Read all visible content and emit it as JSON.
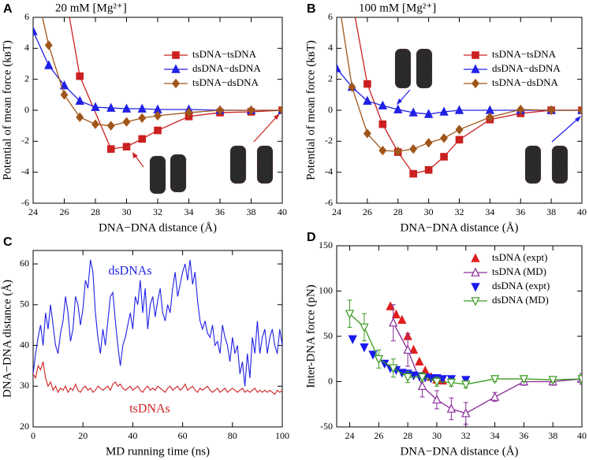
{
  "chart_data": [
    {
      "panel": "A",
      "type": "line",
      "annotation": "20 mM [Mg²⁺]",
      "xlabel": "DNA−DNA distance (Å)",
      "ylabel": "Potential of mean force (kʙT)",
      "xlim": [
        24,
        40
      ],
      "ylim": [
        -6,
        6
      ],
      "xticks": [
        24,
        26,
        28,
        30,
        32,
        34,
        36,
        38,
        40
      ],
      "yticks": [
        -6,
        -4,
        -2,
        0,
        2,
        4,
        6
      ],
      "legend": "upper right",
      "series": [
        {
          "name": "tsDNA−tsDNA",
          "color": "#cc2020",
          "marker": "square",
          "filled": true,
          "line": true,
          "x": [
            26,
            27,
            29,
            30,
            31,
            32,
            34,
            36,
            38,
            40
          ],
          "values": [
            7.9,
            2.2,
            -2.5,
            -2.35,
            -1.85,
            -1.3,
            -0.4,
            -0.15,
            -0.1,
            0
          ]
        },
        {
          "name": "dsDNA−dsDNA",
          "color": "#2020e6",
          "marker": "triangle-up",
          "filled": true,
          "line": true,
          "x": [
            24,
            25,
            26,
            27,
            28,
            29,
            30,
            31,
            32,
            34,
            36,
            38,
            40
          ],
          "values": [
            5.1,
            2.9,
            1.6,
            0.6,
            0.2,
            0.15,
            0.1,
            0.1,
            0.05,
            0.05,
            0,
            0,
            0
          ]
        },
        {
          "name": "tsDNA−dsDNA",
          "color": "#a0561a",
          "marker": "diamond",
          "filled": true,
          "line": true,
          "x": [
            24,
            25,
            26,
            27,
            28,
            29,
            30,
            31,
            32,
            34,
            36,
            38,
            40
          ],
          "values": [
            8.7,
            4.2,
            1.0,
            -0.45,
            -0.9,
            -1.0,
            -0.75,
            -0.5,
            -0.35,
            -0.15,
            0,
            0,
            0
          ]
        }
      ]
    },
    {
      "panel": "B",
      "type": "line",
      "annotation": "100 mM [Mg²⁺]",
      "xlabel": "DNA−DNA distance (Å)",
      "ylabel": "Potential of mean force (kʙT)",
      "xlim": [
        24,
        40
      ],
      "ylim": [
        -6,
        6
      ],
      "xticks": [
        24,
        26,
        28,
        30,
        32,
        34,
        36,
        38,
        40
      ],
      "yticks": [
        -6,
        -4,
        -2,
        0,
        2,
        4,
        6
      ],
      "legend": "upper right",
      "series": [
        {
          "name": "tsDNA−tsDNA",
          "color": "#cc2020",
          "marker": "square",
          "filled": true,
          "line": true,
          "x": [
            25,
            26,
            27,
            28,
            29,
            30,
            31,
            32,
            34,
            36,
            38,
            40
          ],
          "values": [
            7.1,
            1.7,
            -0.9,
            -2.7,
            -4.1,
            -3.85,
            -3.0,
            -1.9,
            -0.6,
            -0.2,
            0,
            0
          ]
        },
        {
          "name": "dsDNA−dsDNA",
          "color": "#2020e6",
          "marker": "triangle-up",
          "filled": true,
          "line": true,
          "x": [
            24,
            25,
            26,
            27,
            28,
            29,
            30,
            31,
            32,
            34,
            36,
            38,
            40
          ],
          "values": [
            2.7,
            1.5,
            0.6,
            0.3,
            0.05,
            -0.15,
            -0.25,
            -0.1,
            0,
            0,
            0,
            0,
            0
          ]
        },
        {
          "name": "tsDNA−dsDNA",
          "color": "#a0561a",
          "marker": "diamond",
          "filled": true,
          "line": true,
          "x": [
            24,
            25,
            26,
            27,
            28,
            29,
            30,
            31,
            32,
            34,
            36,
            38,
            40
          ],
          "values": [
            7.9,
            1.5,
            -1.5,
            -2.6,
            -2.65,
            -2.5,
            -2.1,
            -1.8,
            -1.25,
            -0.45,
            0.05,
            0,
            0
          ]
        }
      ]
    },
    {
      "panel": "C",
      "type": "line",
      "xlabel": "MD running time (ns)",
      "ylabel": "DNA−DNA distance (Å)",
      "xlim": [
        0,
        100
      ],
      "ylim": [
        20,
        63.3
      ],
      "xticks": [
        0,
        20,
        40,
        60,
        80,
        100
      ],
      "yticks": [
        20,
        30,
        40,
        50,
        60
      ],
      "x": [
        0,
        1,
        2,
        3,
        4,
        5,
        6,
        7,
        8,
        9,
        10,
        11,
        12,
        13,
        14,
        15,
        16,
        17,
        18,
        19,
        20,
        21,
        22,
        23,
        24,
        25,
        26,
        27,
        28,
        29,
        30,
        31,
        32,
        33,
        34,
        35,
        36,
        37,
        38,
        39,
        40,
        41,
        42,
        43,
        44,
        45,
        46,
        47,
        48,
        49,
        50,
        51,
        52,
        53,
        54,
        55,
        56,
        57,
        58,
        59,
        60,
        61,
        62,
        63,
        64,
        65,
        66,
        67,
        68,
        69,
        70,
        71,
        72,
        73,
        74,
        75,
        76,
        77,
        78,
        79,
        80,
        81,
        82,
        83,
        84,
        85,
        86,
        87,
        88,
        89,
        90,
        91,
        92,
        93,
        94,
        95,
        96,
        97,
        98,
        99,
        100
      ],
      "series": [
        {
          "name": "dsDNAs",
          "color": "#2020e6",
          "line": true,
          "values": [
            33,
            38,
            42,
            45,
            40,
            48,
            44,
            50,
            45,
            40,
            38,
            43,
            46,
            52,
            48,
            41,
            44,
            52,
            50,
            45,
            49,
            56,
            54,
            61,
            58,
            48,
            42,
            38,
            44,
            40,
            46,
            52,
            53,
            46,
            40,
            35,
            40,
            42,
            45,
            48,
            44,
            52,
            50,
            56,
            48,
            54,
            44,
            50,
            52,
            47,
            51,
            54,
            48,
            46,
            50,
            48,
            54,
            58,
            52,
            55,
            58,
            60,
            56,
            61,
            55,
            58,
            51,
            46,
            44,
            46,
            43,
            42,
            45,
            40,
            41,
            38,
            45,
            42,
            40,
            36,
            42,
            38,
            40,
            33,
            36,
            30,
            38,
            32,
            42,
            38,
            46,
            38,
            42,
            44,
            38,
            42,
            44,
            40,
            38,
            44,
            40
          ]
        },
        {
          "name": "tsDNAs",
          "color": "#cc2020",
          "line": true,
          "values": [
            33,
            32,
            35,
            34,
            36,
            32,
            30,
            31,
            29,
            30,
            28.5,
            29.5,
            29,
            30,
            28.5,
            29.5,
            29,
            30.5,
            29,
            28.5,
            29.5,
            30,
            29,
            29.5,
            28.5,
            29,
            30,
            29.5,
            29,
            29.5,
            30,
            29,
            30.5,
            31,
            30,
            30.5,
            29.5,
            29,
            29.5,
            30,
            29,
            29.5,
            30,
            29,
            28.5,
            29.5,
            30,
            29,
            29.5,
            29,
            30,
            29.5,
            29,
            28.5,
            29.5,
            30,
            29,
            29.5,
            30,
            29,
            29.5,
            30.5,
            29,
            29.5,
            30,
            29,
            28.5,
            29.5,
            29,
            29.5,
            30,
            29,
            28.5,
            29,
            29.5,
            28.5,
            29,
            29.5,
            28.5,
            29,
            29.5,
            29,
            28.5,
            29,
            29.5,
            28.5,
            29,
            28.5,
            29,
            29.5,
            28.5,
            29,
            28.5,
            29,
            28.5,
            29,
            28.5,
            28,
            29,
            28.5,
            29
          ]
        }
      ]
    },
    {
      "panel": "D",
      "type": "scatter",
      "xlabel": "DNA−DNA distance (Å)",
      "ylabel": "Inter-DNA force (pN)",
      "xlim": [
        23.1,
        40
      ],
      "ylim": [
        -50,
        150
      ],
      "xticks": [
        24,
        26,
        28,
        30,
        32,
        34,
        36,
        38,
        40
      ],
      "yticks": [
        -50,
        0,
        50,
        100,
        150
      ],
      "legend": "upper right",
      "series": [
        {
          "name": "tsDNA (expt)",
          "color": "#e01e1e",
          "marker": "triangle-up",
          "filled": true,
          "line": false,
          "x": [
            26.8,
            27.2,
            27.6,
            28,
            28.4,
            28.8,
            29.2,
            29.6,
            30,
            30.4
          ],
          "values": [
            83,
            74,
            68,
            50,
            35,
            22,
            12,
            5,
            2,
            1
          ]
        },
        {
          "name": "tsDNA (MD)",
          "color": "#8a2a9a",
          "marker": "triangle-up",
          "filled": false,
          "line": true,
          "x": [
            27,
            28,
            29,
            30,
            31,
            32,
            34,
            36,
            38,
            40
          ],
          "values": [
            65,
            35,
            -5,
            -20,
            -30,
            -35,
            -17,
            0,
            0,
            3
          ],
          "errors": [
            20,
            18,
            12,
            10,
            12,
            12,
            5,
            4,
            4,
            6
          ]
        },
        {
          "name": "dsDNA (expt)",
          "color": "#1a1aee",
          "marker": "triangle-down",
          "filled": true,
          "line": false,
          "x": [
            24.2,
            25,
            25.6,
            26,
            26.4,
            26.8,
            27.2,
            27.6,
            28,
            28.4,
            28.8,
            29.2,
            29.6,
            30,
            30.4,
            31,
            32
          ],
          "values": [
            47,
            38,
            30,
            25,
            20,
            15,
            13,
            10,
            9,
            7,
            6,
            5,
            4,
            4,
            3,
            3,
            2
          ]
        },
        {
          "name": "dsDNA (MD)",
          "color": "#3a9a20",
          "marker": "triangle-down",
          "filled": false,
          "line": true,
          "x": [
            24,
            25,
            26,
            27,
            28,
            29,
            30,
            31,
            32,
            34,
            36,
            38,
            40
          ],
          "values": [
            75,
            60,
            25,
            15,
            5,
            5,
            0,
            -1,
            -3,
            3,
            3,
            2,
            3
          ],
          "errors": [
            15,
            15,
            10,
            10,
            6,
            5,
            5,
            4,
            4,
            3,
            3,
            3,
            5
          ]
        }
      ]
    }
  ]
}
